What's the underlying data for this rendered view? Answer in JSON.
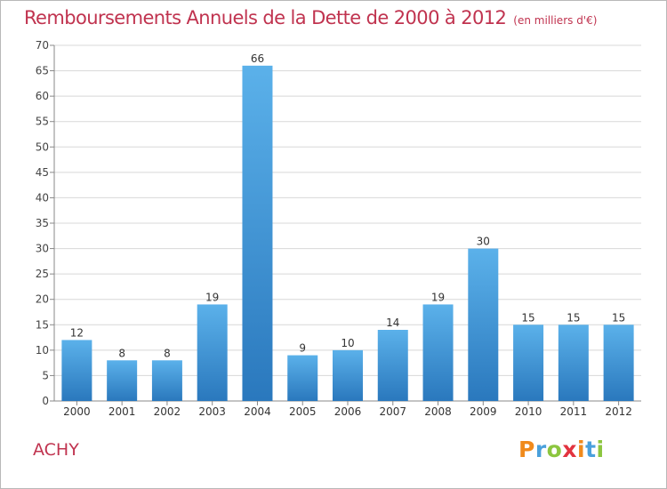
{
  "chart_data": {
    "type": "bar",
    "title": "Remboursements Annuels de la Dette de 2000 à 2012",
    "subtitle": "(en milliers d'€)",
    "categories": [
      "2000",
      "2001",
      "2002",
      "2003",
      "2004",
      "2005",
      "2006",
      "2007",
      "2008",
      "2009",
      "2010",
      "2011",
      "2012"
    ],
    "values": [
      12,
      8,
      8,
      19,
      66,
      9,
      10,
      14,
      19,
      30,
      15,
      15,
      15
    ],
    "data_labels": [
      "12",
      "8",
      "8",
      "19",
      "66",
      "9",
      "10",
      "14",
      "19",
      "30",
      "15",
      "15",
      "15"
    ],
    "ylim": [
      0,
      70
    ],
    "yticks": [
      "0",
      "5",
      "10",
      "15",
      "20",
      "25",
      "30",
      "35",
      "40",
      "45",
      "50",
      "55",
      "60",
      "65",
      "70"
    ],
    "grid": true,
    "bar_color": "#3a8fd6",
    "title_color": "#c0334f"
  },
  "commune": "ACHY",
  "logo": {
    "letters": [
      "P",
      "r",
      "o",
      "x",
      "i",
      "t",
      "i"
    ],
    "colors": [
      "#f08a1c",
      "#4aa0dc",
      "#8cc63f",
      "#e2333f",
      "#f08a1c",
      "#4aa0dc",
      "#8cc63f"
    ]
  }
}
